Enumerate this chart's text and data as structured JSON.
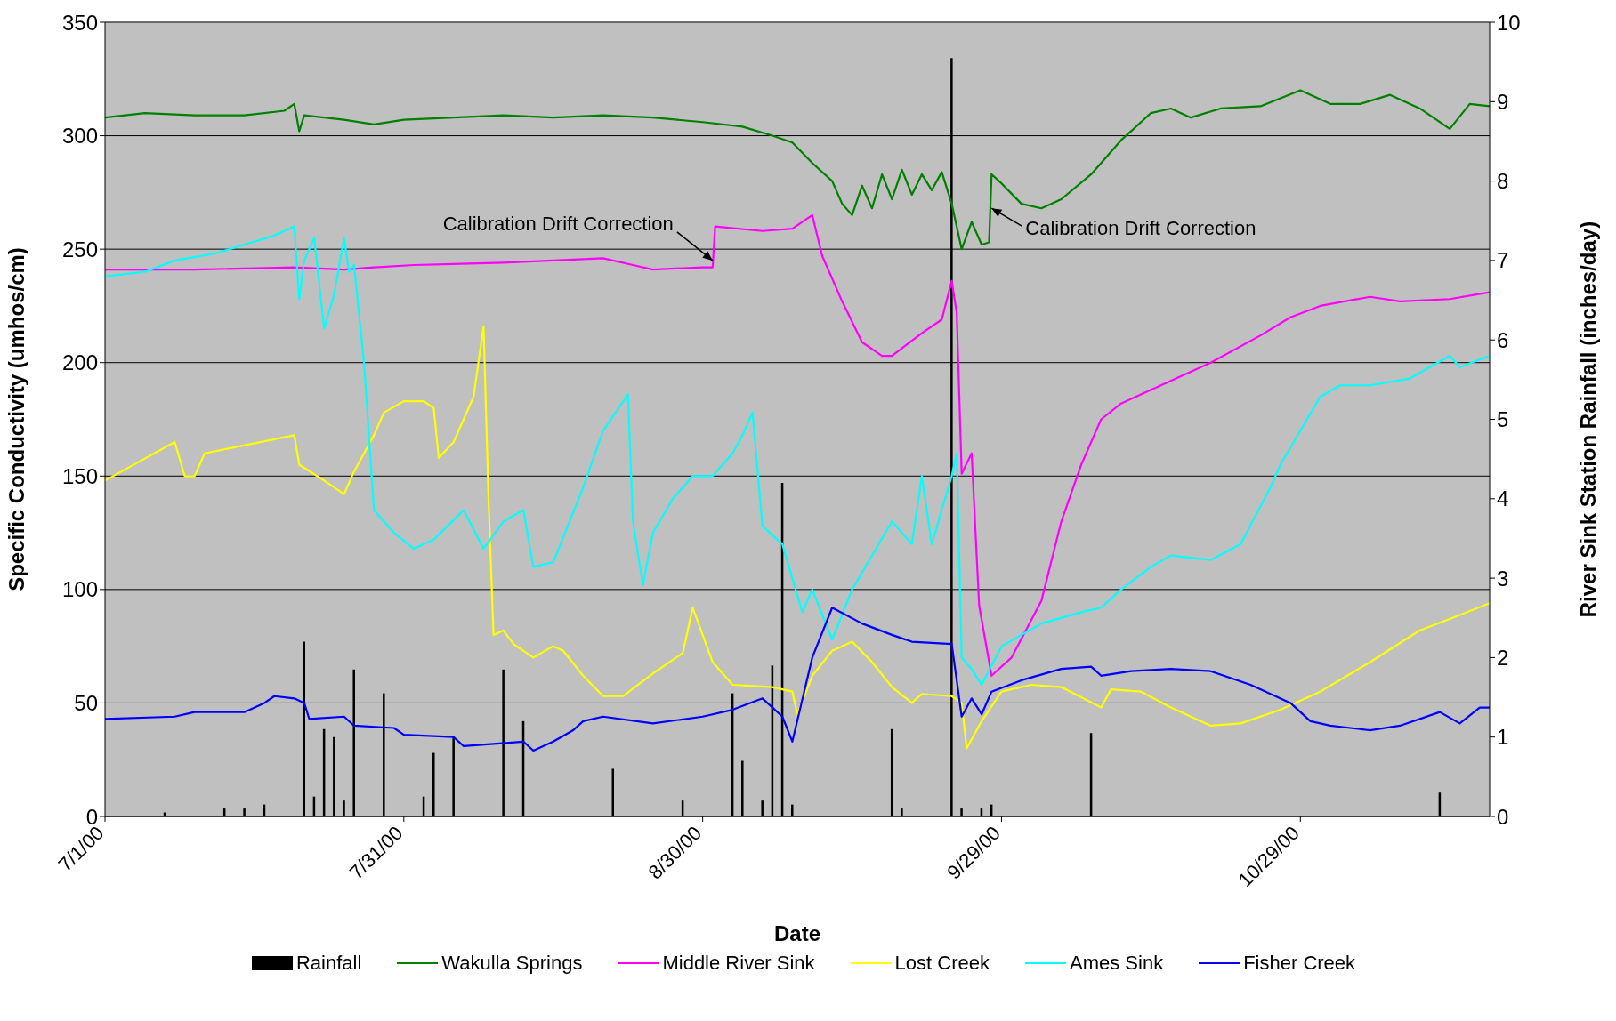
{
  "chart_data": {
    "type": "line",
    "xlabel": "Date",
    "ylabel": "Specific Conductivity (umhos/cm)",
    "y2label": "River Sink Station Rainfall (inches/day)",
    "xlim": [
      "2000-07-01",
      "2000-11-17"
    ],
    "xticks": [
      {
        "value": "2000-07-01",
        "label": "7/1/00"
      },
      {
        "value": "2000-07-31",
        "label": "7/31/00"
      },
      {
        "value": "2000-08-30",
        "label": "8/30/00"
      },
      {
        "value": "2000-09-29",
        "label": "9/29/00"
      },
      {
        "value": "2000-10-29",
        "label": "10/29/00"
      }
    ],
    "ylim": [
      0,
      350
    ],
    "yticks": [
      0,
      50,
      100,
      150,
      200,
      250,
      300,
      350
    ],
    "y2lim": [
      0,
      10
    ],
    "y2ticks": [
      0,
      1,
      2,
      3,
      4,
      5,
      6,
      7,
      8,
      9,
      10
    ],
    "grid": "y",
    "legend": "bottom",
    "line_style": "solid",
    "annotations": [
      {
        "text": "Calibration Drift Correction",
        "x": "2000-08-31",
        "y": 245
      },
      {
        "text": "Calibration Drift Correction",
        "x": "2000-09-28",
        "y": 268
      }
    ],
    "series": [
      {
        "name": "Rainfall",
        "type": "bar",
        "axis": "y2",
        "color": "#000000",
        "x": [
          "2000-07-07",
          "2000-07-13",
          "2000-07-15",
          "2000-07-17",
          "2000-07-21",
          "2000-07-22",
          "2000-07-23",
          "2000-07-24",
          "2000-07-25",
          "2000-07-26",
          "2000-07-29",
          "2000-08-02",
          "2000-08-03",
          "2000-08-05",
          "2000-08-10",
          "2000-08-12",
          "2000-08-21",
          "2000-08-28",
          "2000-09-02",
          "2000-09-03",
          "2000-09-05",
          "2000-09-06",
          "2000-09-07",
          "2000-09-08",
          "2000-09-18",
          "2000-09-19",
          "2000-09-24",
          "2000-09-25",
          "2000-09-27",
          "2000-09-28",
          "2000-10-08",
          "2000-11-12"
        ],
        "values": [
          0.05,
          0.1,
          0.1,
          0.15,
          2.2,
          0.25,
          1.1,
          1.0,
          0.2,
          1.85,
          1.55,
          0.25,
          0.8,
          1.0,
          1.85,
          1.2,
          0.6,
          0.2,
          1.55,
          0.7,
          0.2,
          1.9,
          4.2,
          0.15,
          1.1,
          0.1,
          9.55,
          0.1,
          0.1,
          0.15,
          1.05,
          0.3
        ]
      },
      {
        "name": "Wakulla Springs",
        "color": "#008000",
        "x": [
          "2000-07-01",
          "2000-07-05",
          "2000-07-10",
          "2000-07-15",
          "2000-07-19",
          "2000-07-20",
          "2000-07-20T12:00",
          "2000-07-21",
          "2000-07-25",
          "2000-07-28",
          "2000-07-31",
          "2000-08-05",
          "2000-08-10",
          "2000-08-15",
          "2000-08-20",
          "2000-08-25",
          "2000-08-30",
          "2000-09-03",
          "2000-09-06",
          "2000-09-08",
          "2000-09-10",
          "2000-09-12",
          "2000-09-13",
          "2000-09-14",
          "2000-09-15",
          "2000-09-16",
          "2000-09-17",
          "2000-09-18",
          "2000-09-19",
          "2000-09-20",
          "2000-09-21",
          "2000-09-22",
          "2000-09-23",
          "2000-09-24",
          "2000-09-24T12:00",
          "2000-09-25",
          "2000-09-26",
          "2000-09-27",
          "2000-09-27T18:00",
          "2000-09-28",
          "2000-09-29",
          "2000-10-01",
          "2000-10-03",
          "2000-10-05",
          "2000-10-08",
          "2000-10-11",
          "2000-10-14",
          "2000-10-16",
          "2000-10-18",
          "2000-10-21",
          "2000-10-25",
          "2000-10-29",
          "2000-11-01",
          "2000-11-04",
          "2000-11-07",
          "2000-11-10",
          "2000-11-13",
          "2000-11-15",
          "2000-11-17"
        ],
        "values": [
          308,
          310,
          309,
          309,
          311,
          314,
          302,
          309,
          307,
          305,
          307,
          308,
          309,
          308,
          309,
          308,
          306,
          304,
          300,
          297,
          288,
          280,
          270,
          265,
          278,
          268,
          283,
          272,
          285,
          274,
          283,
          276,
          284,
          270,
          260,
          250,
          262,
          252,
          253,
          283,
          279,
          270,
          268,
          272,
          283,
          298,
          310,
          312,
          308,
          312,
          313,
          320,
          314,
          314,
          318,
          312,
          303,
          314,
          313
        ]
      },
      {
        "name": "Middle River Sink",
        "color": "#ff00ff",
        "x": [
          "2000-07-01",
          "2000-07-10",
          "2000-07-20",
          "2000-07-25",
          "2000-07-28",
          "2000-08-01",
          "2000-08-10",
          "2000-08-20",
          "2000-08-23",
          "2000-08-25",
          "2000-08-30",
          "2000-08-31",
          "2000-08-31T06:00",
          "2000-09-05",
          "2000-09-08",
          "2000-09-10",
          "2000-09-11",
          "2000-09-13",
          "2000-09-15",
          "2000-09-17",
          "2000-09-18",
          "2000-09-21",
          "2000-09-23",
          "2000-09-24",
          "2000-09-24T12:00",
          "2000-09-25",
          "2000-09-26",
          "2000-09-26T18:00",
          "2000-09-28",
          "2000-09-30",
          "2000-10-03",
          "2000-10-05",
          "2000-10-07",
          "2000-10-09",
          "2000-10-11",
          "2000-10-15",
          "2000-10-20",
          "2000-10-25",
          "2000-10-28",
          "2000-10-31",
          "2000-11-05",
          "2000-11-08",
          "2000-11-13",
          "2000-11-17"
        ],
        "values": [
          241,
          241,
          242,
          241,
          242,
          243,
          244,
          246,
          243,
          241,
          242,
          242,
          260,
          258,
          259,
          265,
          247,
          227,
          209,
          203,
          203,
          213,
          219,
          236,
          222,
          151,
          160,
          93,
          62,
          70,
          95,
          130,
          155,
          175,
          182,
          190,
          200,
          212,
          220,
          225,
          229,
          227,
          228,
          231
        ]
      },
      {
        "name": "Lost Creek",
        "color": "#ffff00",
        "x": [
          "2000-07-01",
          "2000-07-08",
          "2000-07-09",
          "2000-07-10",
          "2000-07-11",
          "2000-07-20",
          "2000-07-20T12:00",
          "2000-07-23",
          "2000-07-25",
          "2000-07-26",
          "2000-07-28",
          "2000-07-29",
          "2000-07-31",
          "2000-08-02",
          "2000-08-03",
          "2000-08-03T12:00",
          "2000-08-05",
          "2000-08-06",
          "2000-08-07",
          "2000-08-08",
          "2000-08-08T12:00",
          "2000-08-09",
          "2000-08-10",
          "2000-08-11",
          "2000-08-13",
          "2000-08-15",
          "2000-08-16",
          "2000-08-18",
          "2000-08-20",
          "2000-08-22",
          "2000-08-25",
          "2000-08-28",
          "2000-08-29",
          "2000-08-31",
          "2000-09-02",
          "2000-09-06",
          "2000-09-08",
          "2000-09-08T12:00",
          "2000-09-10",
          "2000-09-12",
          "2000-09-14",
          "2000-09-16",
          "2000-09-18",
          "2000-09-20",
          "2000-09-21",
          "2000-09-24",
          "2000-09-25",
          "2000-09-25T12:00",
          "2000-09-27",
          "2000-09-29",
          "2000-10-02",
          "2000-10-05",
          "2000-10-09",
          "2000-10-10",
          "2000-10-13",
          "2000-10-16",
          "2000-10-20",
          "2000-10-23",
          "2000-10-27",
          "2000-10-31",
          "2000-11-05",
          "2000-11-10",
          "2000-11-13",
          "2000-11-17"
        ],
        "values": [
          148,
          165,
          150,
          150,
          160,
          168,
          155,
          148,
          142,
          152,
          168,
          178,
          183,
          183,
          180,
          158,
          165,
          175,
          185,
          216,
          140,
          80,
          82,
          76,
          70,
          75,
          73,
          62,
          53,
          53,
          63,
          72,
          92,
          68,
          58,
          57,
          55,
          45,
          62,
          73,
          77,
          68,
          57,
          50,
          54,
          53,
          50,
          30,
          42,
          55,
          58,
          57,
          48,
          56,
          55,
          48,
          40,
          41,
          47,
          55,
          68,
          82,
          87,
          94
        ]
      },
      {
        "name": "Ames Sink",
        "color": "#00ffff",
        "x": [
          "2000-07-01",
          "2000-07-05",
          "2000-07-08",
          "2000-07-12",
          "2000-07-15",
          "2000-07-18",
          "2000-07-20",
          "2000-07-20T12:00",
          "2000-07-21",
          "2000-07-22",
          "2000-07-23",
          "2000-07-24",
          "2000-07-25",
          "2000-07-25T12:00",
          "2000-07-26",
          "2000-07-27",
          "2000-07-28",
          "2000-07-30",
          "2000-08-01",
          "2000-08-03",
          "2000-08-06",
          "2000-08-08",
          "2000-08-10",
          "2000-08-12",
          "2000-08-13",
          "2000-08-15",
          "2000-08-18",
          "2000-08-20",
          "2000-08-22T12:00",
          "2000-08-23",
          "2000-08-24",
          "2000-08-25",
          "2000-08-27",
          "2000-08-29",
          "2000-08-31",
          "2000-09-02",
          "2000-09-03",
          "2000-09-04",
          "2000-09-05",
          "2000-09-07",
          "2000-09-09",
          "2000-09-10",
          "2000-09-12",
          "2000-09-14",
          "2000-09-16",
          "2000-09-18",
          "2000-09-20",
          "2000-09-21",
          "2000-09-22",
          "2000-09-24",
          "2000-09-24T12:00",
          "2000-09-25",
          "2000-09-26",
          "2000-09-27",
          "2000-09-29",
          "2000-10-03",
          "2000-10-07",
          "2000-10-09",
          "2000-10-11",
          "2000-10-14",
          "2000-10-16",
          "2000-10-20",
          "2000-10-23",
          "2000-10-26",
          "2000-10-27",
          "2000-10-29",
          "2000-10-31",
          "2000-11-02",
          "2000-11-05",
          "2000-11-09",
          "2000-11-13",
          "2000-11-14",
          "2000-11-17"
        ],
        "values": [
          238,
          240,
          245,
          248,
          252,
          256,
          260,
          228,
          245,
          255,
          215,
          230,
          255,
          240,
          243,
          200,
          135,
          125,
          118,
          122,
          135,
          118,
          130,
          135,
          110,
          112,
          145,
          170,
          186,
          130,
          102,
          125,
          140,
          150,
          150,
          160,
          168,
          178,
          128,
          120,
          90,
          100,
          78,
          100,
          115,
          130,
          120,
          150,
          120,
          150,
          160,
          70,
          65,
          58,
          75,
          85,
          90,
          92,
          100,
          110,
          115,
          113,
          120,
          145,
          155,
          170,
          185,
          190,
          190,
          193,
          203,
          198,
          203
        ]
      },
      {
        "name": "Fisher Creek",
        "color": "#0000ff",
        "x": [
          "2000-07-01",
          "2000-07-08",
          "2000-07-10",
          "2000-07-15",
          "2000-07-17",
          "2000-07-18",
          "2000-07-20",
          "2000-07-21",
          "2000-07-21T12:00",
          "2000-07-25",
          "2000-07-26",
          "2000-07-30",
          "2000-07-31",
          "2000-08-05",
          "2000-08-06",
          "2000-08-12",
          "2000-08-13",
          "2000-08-15",
          "2000-08-17",
          "2000-08-18",
          "2000-08-20",
          "2000-08-25",
          "2000-08-30",
          "2000-09-02",
          "2000-09-05",
          "2000-09-07",
          "2000-09-08",
          "2000-09-10",
          "2000-09-12",
          "2000-09-15",
          "2000-09-18",
          "2000-09-20",
          "2000-09-24",
          "2000-09-25",
          "2000-09-26",
          "2000-09-27",
          "2000-09-28",
          "2000-10-01",
          "2000-10-05",
          "2000-10-08",
          "2000-10-09",
          "2000-10-12",
          "2000-10-16",
          "2000-10-20",
          "2000-10-24",
          "2000-10-26",
          "2000-10-28",
          "2000-10-30",
          "2000-11-01",
          "2000-11-05",
          "2000-11-08",
          "2000-11-12",
          "2000-11-14",
          "2000-11-16",
          "2000-11-17"
        ],
        "values": [
          43,
          44,
          46,
          46,
          50,
          53,
          52,
          50,
          43,
          44,
          40,
          39,
          36,
          35,
          31,
          33,
          29,
          33,
          38,
          42,
          44,
          41,
          44,
          47,
          52,
          44,
          33,
          70,
          92,
          85,
          80,
          77,
          76,
          44,
          52,
          45,
          55,
          60,
          65,
          66,
          62,
          64,
          65,
          64,
          58,
          54,
          50,
          42,
          40,
          38,
          40,
          46,
          41,
          48,
          48
        ]
      }
    ]
  }
}
